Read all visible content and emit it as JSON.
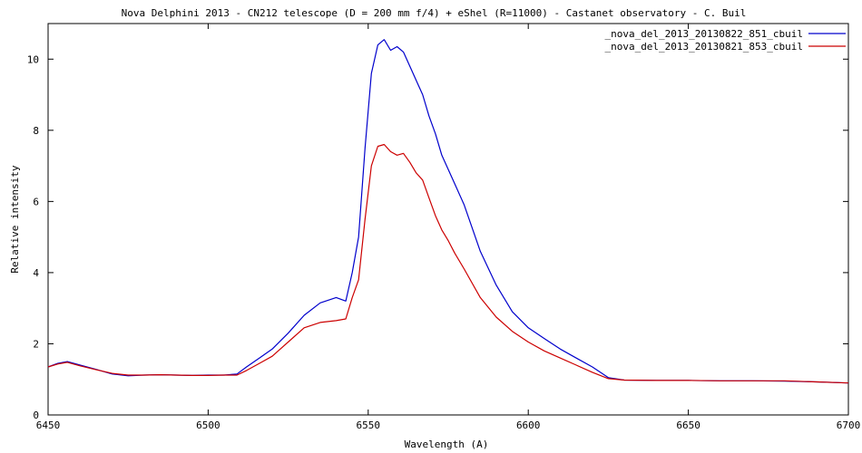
{
  "chart_data": {
    "type": "line",
    "title": "Nova Delphini 2013 - CN212 telescope (D = 200 mm f/4) + eShel (R=11000) -  Castanet observatory - C. Buil",
    "xlabel": "Wavelength (A)",
    "ylabel": "Relative intensity",
    "xlim": [
      6450,
      6700
    ],
    "ylim": [
      0,
      11
    ],
    "xticks": [
      6450,
      6500,
      6550,
      6600,
      6650,
      6700
    ],
    "yticks": [
      0,
      2,
      4,
      6,
      8,
      10
    ],
    "grid": false,
    "legend_position": "top-right",
    "series": [
      {
        "name": "_nova_del_2013_20130822_851_cbuil",
        "color": "#0000cc",
        "x": [
          6450,
          6453,
          6456,
          6460,
          6465,
          6470,
          6475,
          6480,
          6485,
          6490,
          6495,
          6500,
          6505,
          6509,
          6512,
          6516,
          6520,
          6525,
          6530,
          6535,
          6540,
          6543,
          6545,
          6547,
          6549,
          6551,
          6553,
          6555,
          6557,
          6559,
          6561,
          6563,
          6565,
          6567,
          6569,
          6571,
          6573,
          6575,
          6577,
          6580,
          6585,
          6590,
          6595,
          6600,
          6605,
          6610,
          6615,
          6620,
          6625,
          6630,
          6640,
          6650,
          6660,
          6670,
          6680,
          6690,
          6700
        ],
        "values": [
          1.35,
          1.45,
          1.5,
          1.4,
          1.28,
          1.15,
          1.1,
          1.12,
          1.13,
          1.12,
          1.11,
          1.12,
          1.12,
          1.15,
          1.35,
          1.6,
          1.85,
          2.3,
          2.8,
          3.15,
          3.3,
          3.2,
          4.0,
          5.0,
          7.5,
          9.6,
          10.4,
          10.55,
          10.25,
          10.35,
          10.2,
          9.8,
          9.4,
          9.0,
          8.4,
          7.9,
          7.3,
          6.9,
          6.5,
          5.9,
          4.6,
          3.65,
          2.9,
          2.45,
          2.15,
          1.85,
          1.6,
          1.35,
          1.05,
          0.98,
          0.97,
          0.97,
          0.96,
          0.96,
          0.95,
          0.93,
          0.9
        ]
      },
      {
        "name": "_nova_del_2013_20130821_853_cbuil",
        "color": "#cc0000",
        "x": [
          6450,
          6453,
          6456,
          6460,
          6465,
          6470,
          6475,
          6480,
          6485,
          6490,
          6495,
          6500,
          6505,
          6509,
          6512,
          6516,
          6520,
          6525,
          6530,
          6535,
          6540,
          6543,
          6545,
          6547,
          6549,
          6551,
          6553,
          6555,
          6557,
          6559,
          6561,
          6563,
          6565,
          6567,
          6569,
          6571,
          6573,
          6575,
          6577,
          6580,
          6585,
          6590,
          6595,
          6600,
          6605,
          6610,
          6615,
          6620,
          6625,
          6630,
          6640,
          6650,
          6660,
          6670,
          6680,
          6690,
          6700
        ],
        "values": [
          1.35,
          1.43,
          1.48,
          1.38,
          1.27,
          1.17,
          1.12,
          1.12,
          1.13,
          1.12,
          1.11,
          1.11,
          1.12,
          1.12,
          1.25,
          1.45,
          1.65,
          2.05,
          2.45,
          2.6,
          2.65,
          2.7,
          3.3,
          3.8,
          5.5,
          7.0,
          7.55,
          7.6,
          7.4,
          7.3,
          7.35,
          7.1,
          6.8,
          6.6,
          6.1,
          5.6,
          5.2,
          4.9,
          4.55,
          4.1,
          3.3,
          2.75,
          2.35,
          2.05,
          1.8,
          1.6,
          1.4,
          1.2,
          1.02,
          0.98,
          0.97,
          0.97,
          0.96,
          0.96,
          0.96,
          0.93,
          0.9
        ]
      }
    ]
  }
}
